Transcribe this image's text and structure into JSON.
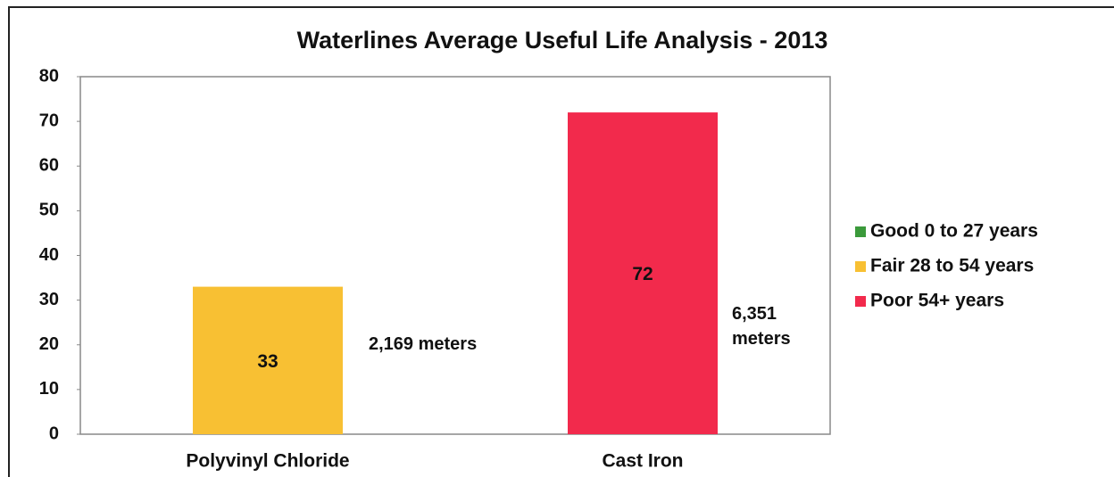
{
  "chart_data": {
    "type": "bar",
    "title": "Waterlines Average Useful Life Analysis - 2013",
    "categories": [
      "Polyvinyl Chloride",
      "Cast Iron"
    ],
    "series": [
      {
        "name": "Good 0 to 27 years",
        "color": "#3b9a3b",
        "values": [
          null,
          null
        ]
      },
      {
        "name": "Fair 28 to 54 years",
        "color": "#f8c033",
        "values": [
          33,
          null
        ]
      },
      {
        "name": "Poor 54+ years",
        "color": "#f22a4c",
        "values": [
          null,
          72
        ]
      }
    ],
    "annotations": [
      "2,169 meters",
      "6,351 meters"
    ],
    "ylim": [
      0,
      80
    ],
    "yticks": [
      0,
      10,
      20,
      30,
      40,
      50,
      60,
      70,
      80
    ],
    "grid": false,
    "legend": "right"
  }
}
